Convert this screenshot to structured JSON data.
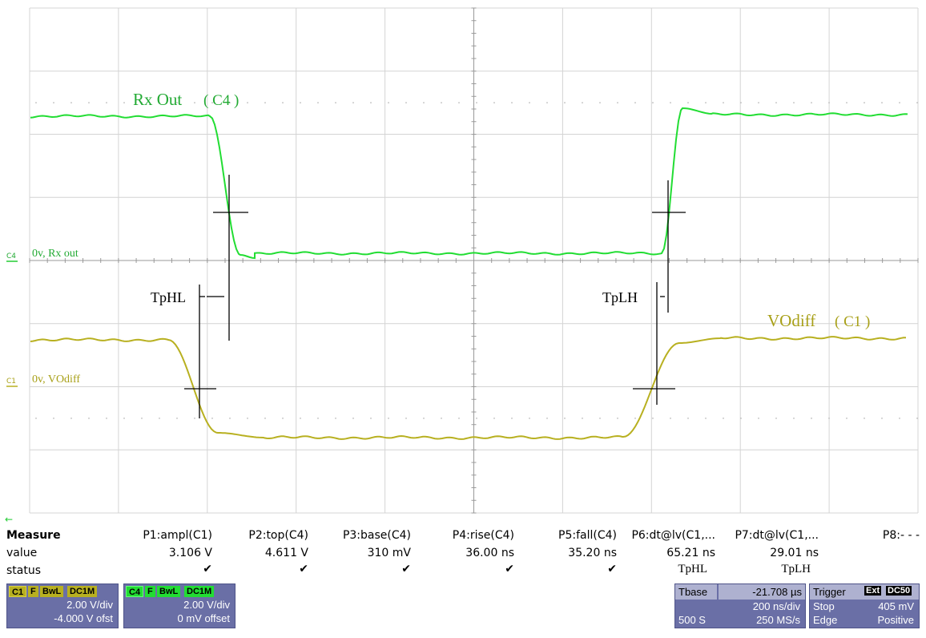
{
  "traces": {
    "c4": {
      "color": "#22dd33",
      "label": "Rx Out",
      "label_ch": "( C4 )",
      "ground_tag": "C4",
      "ground_label": "0v, Rx out"
    },
    "c1": {
      "color": "#b8b020",
      "label": "VOdiff",
      "label_ch": "( C1 )",
      "ground_tag": "C1",
      "ground_label": "0v, VOdiff"
    }
  },
  "cursors": {
    "tphl_label": "TpHL",
    "tplh_label": "TpLH"
  },
  "measure": {
    "row_labels": [
      "Measure",
      "value",
      "status"
    ],
    "params": [
      {
        "name": "P1:ampl(C1)",
        "value": "3.106 V",
        "status": "✔"
      },
      {
        "name": "P2:top(C4)",
        "value": "4.611 V",
        "status": "✔"
      },
      {
        "name": "P3:base(C4)",
        "value": "310 mV",
        "status": "✔"
      },
      {
        "name": "P4:rise(C4)",
        "value": "36.00 ns",
        "status": "✔"
      },
      {
        "name": "P5:fall(C4)",
        "value": "35.20 ns",
        "status": "✔"
      },
      {
        "name": "P6:dt@lv(C1,...",
        "value": "65.21 ns",
        "status": "TpHL"
      },
      {
        "name": "P7:dt@lv(C1,...",
        "value": "29.01 ns",
        "status": "TpLH"
      },
      {
        "name": "P8:- - -",
        "value": "",
        "status": ""
      }
    ]
  },
  "channels": [
    {
      "name": "C1",
      "tags": [
        "F",
        "BwL",
        "DC1M"
      ],
      "vdiv": "2.00 V/div",
      "offset": "-4.000 V ofst",
      "color": "#b8b020"
    },
    {
      "name": "C4",
      "tags": [
        "F",
        "BwL",
        "DC1M"
      ],
      "vdiv": "2.00 V/div",
      "offset": "0 mV offset",
      "color": "#22dd33"
    }
  ],
  "timebase": {
    "label": "Tbase",
    "delay": "-21.708 µs",
    "tdiv": "200 ns/div",
    "samples": "500 S",
    "rate": "250 MS/s"
  },
  "trigger": {
    "label": "Trigger",
    "tags": [
      "Ext",
      "DC50"
    ],
    "mode": "Stop",
    "level": "405 mV",
    "type": "Edge",
    "slope": "Positive"
  }
}
